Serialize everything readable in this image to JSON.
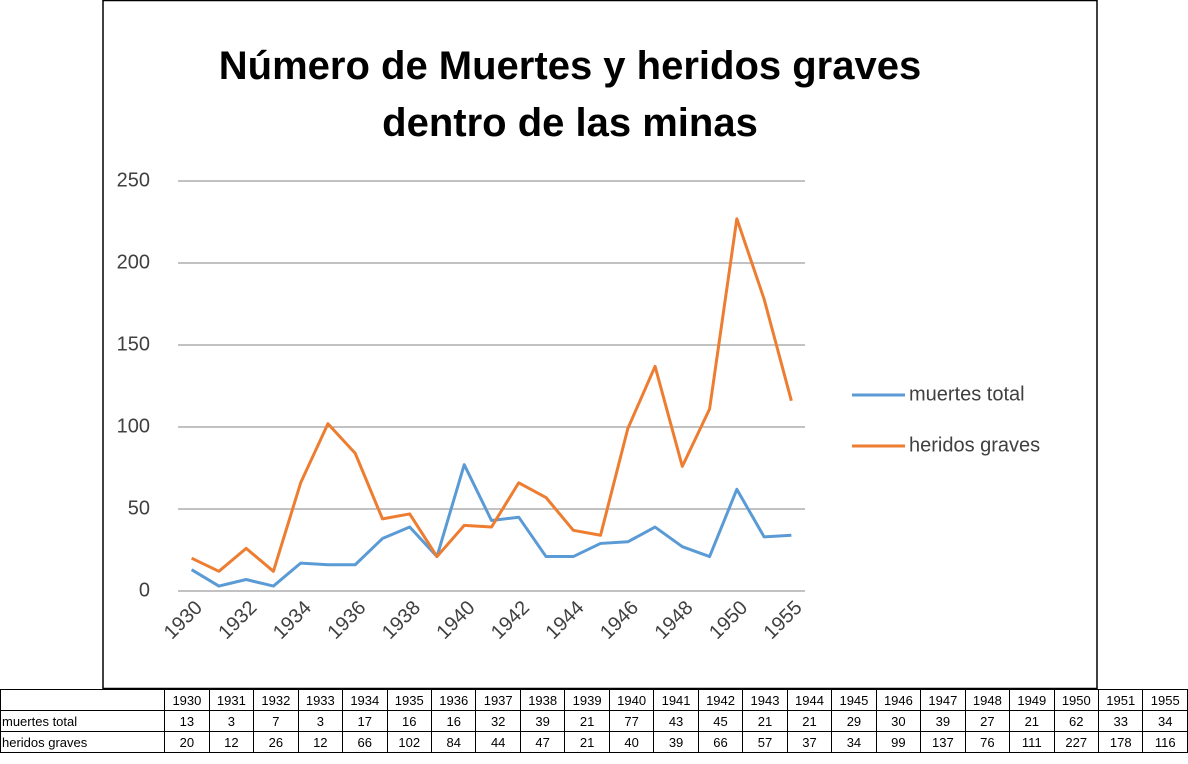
{
  "chart_data": {
    "type": "line",
    "title": "Número de Muertes y heridos graves dentro de las minas",
    "categories": [
      "1930",
      null,
      "1932",
      null,
      "1934",
      null,
      "1936",
      null,
      "1938",
      null,
      "1940",
      null,
      "1942",
      null,
      "1944",
      null,
      "1946",
      null,
      "1948",
      null,
      "1950",
      null,
      "1955"
    ],
    "series": [
      {
        "name": "muertes total",
        "color": "#5b9bd5",
        "values": [
          13,
          3,
          7,
          3,
          17,
          16,
          16,
          32,
          39,
          21,
          77,
          43,
          45,
          21,
          21,
          29,
          30,
          39,
          27,
          21,
          62,
          33,
          34
        ]
      },
      {
        "name": "heridos graves",
        "color": "#ed7d31",
        "values": [
          20,
          12,
          26,
          12,
          66,
          102,
          84,
          44,
          47,
          21,
          40,
          39,
          66,
          57,
          37,
          34,
          99,
          137,
          76,
          111,
          227,
          178,
          116
        ]
      }
    ],
    "ylim": [
      0,
      250
    ],
    "yticks": [
      0,
      50,
      100,
      150,
      200,
      250
    ],
    "grid": true,
    "legend": "right"
  },
  "table": {
    "columns": [
      "1930",
      "1931",
      "1932",
      "1933",
      "1934",
      "1935",
      "1936",
      "1937",
      "1938",
      "1939",
      "1940",
      "1941",
      "1942",
      "1943",
      "1944",
      "1945",
      "1946",
      "1947",
      "1948",
      "1949",
      "1950",
      "1951",
      "1955"
    ],
    "rows": [
      {
        "label": "muertes total",
        "values": [
          "13",
          "3",
          "7",
          "3",
          "17",
          "16",
          "16",
          "32",
          "39",
          "21",
          "77",
          "43",
          "45",
          "21",
          "21",
          "29",
          "30",
          "39",
          "27",
          "21",
          "62",
          "33",
          "34"
        ]
      },
      {
        "label": "heridos graves",
        "values": [
          "20",
          "12",
          "26",
          "12",
          "66",
          "102",
          "84",
          "44",
          "47",
          "21",
          "40",
          "39",
          "66",
          "57",
          "37",
          "34",
          "99",
          "137",
          "76",
          "111",
          "227",
          "178",
          "116"
        ]
      }
    ]
  }
}
